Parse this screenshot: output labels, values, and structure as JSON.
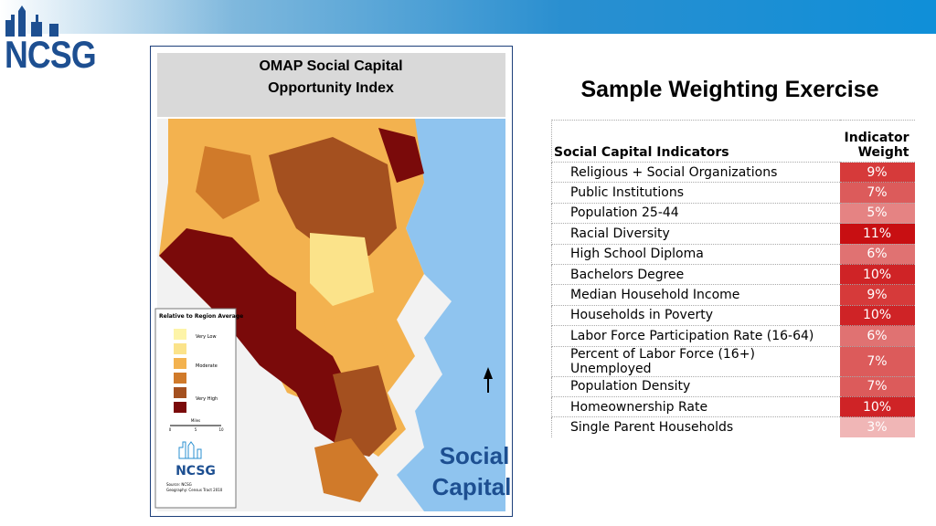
{
  "logo": "NCSG",
  "map": {
    "title_lines": [
      "OMAP Social Capital",
      "Opportunity Index"
    ],
    "legend_title": "Relative to Region Average",
    "legend_labels": [
      "Very Low",
      "Moderate",
      "Very High"
    ],
    "scale_title": "Miles",
    "scale_ticks": [
      "0",
      "5",
      "10"
    ],
    "logo": "NCSG",
    "source": "Source: NCSG",
    "geography": "Geography: Census Tract 2010",
    "label_lines": [
      "Social",
      "Capital"
    ]
  },
  "table": {
    "title": "Sample Weighting Exercise",
    "header_indicator": "Social Capital Indicators",
    "header_weight_lines": [
      "Indicator",
      "Weight"
    ],
    "rows": [
      {
        "indicator": "Religious + Social Organizations",
        "weight": "9%",
        "color": "#d63a3a"
      },
      {
        "indicator": "Public Institutions",
        "weight": "7%",
        "color": "#dc5b5b"
      },
      {
        "indicator": "Population 25-44",
        "weight": "5%",
        "color": "#e58383"
      },
      {
        "indicator": "Racial Diversity",
        "weight": "11%",
        "color": "#c80f12"
      },
      {
        "indicator": "High School Diploma",
        "weight": "6%",
        "color": "#e07272"
      },
      {
        "indicator": "Bachelors Degree",
        "weight": "10%",
        "color": "#cf2326"
      },
      {
        "indicator": "Median Household Income",
        "weight": "9%",
        "color": "#d63a3a"
      },
      {
        "indicator": "Households in Poverty",
        "weight": "10%",
        "color": "#cf2326"
      },
      {
        "indicator": "Labor Force Participation Rate (16-64)",
        "weight": "6%",
        "color": "#e07272"
      },
      {
        "indicator": "Percent of Labor Force (16+) Unemployed",
        "weight": "7%",
        "color": "#dc5b5b"
      },
      {
        "indicator": "Population Density",
        "weight": "7%",
        "color": "#dc5b5b"
      },
      {
        "indicator": "Homeownership Rate",
        "weight": "10%",
        "color": "#cf2326"
      },
      {
        "indicator": "Single Parent Households",
        "weight": "3%",
        "color": "#f0b6b6"
      }
    ]
  }
}
